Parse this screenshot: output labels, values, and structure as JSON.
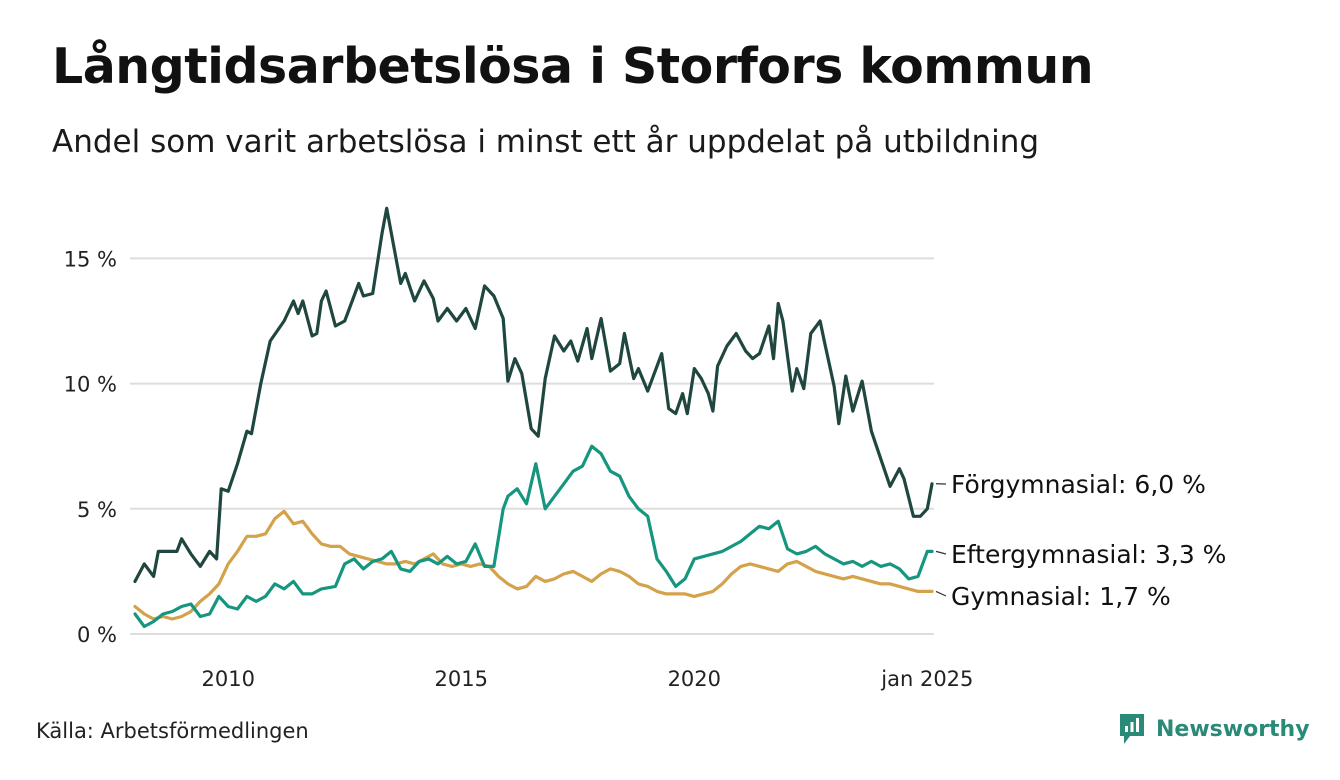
{
  "header": {
    "title": "Långtidsarbetslösa i Storfors kommun",
    "subtitle": "Andel som varit arbetslösa i minst ett år uppdelat på utbildning"
  },
  "footer": {
    "source": "Källa: Arbetsförmedlingen",
    "brand": "Newsworthy",
    "brand_icon": "newsworthy-logo-icon"
  },
  "colors": {
    "forgymnasial": "#1f4740",
    "eftergymnasial": "#17967f",
    "gymnasial": "#d4a24a",
    "grid": "#dddddd",
    "brand": "#2a8a78"
  },
  "chart_data": {
    "type": "line",
    "title": "Långtidsarbetslösa i Storfors kommun",
    "subtitle": "Andel som varit arbetslösa i minst ett år uppdelat på utbildning",
    "xlabel": "",
    "ylabel": "",
    "x_range": [
      2008,
      2025.1
    ],
    "ylim": [
      0,
      18
    ],
    "y_ticks": [
      0,
      5,
      10,
      15
    ],
    "y_tick_labels": [
      "0 %",
      "5 %",
      "10 %",
      "15 %"
    ],
    "x_ticks": [
      2010,
      2015,
      2020,
      2025
    ],
    "x_tick_labels": [
      "2010",
      "2015",
      "2020",
      "jan 2025"
    ],
    "grid": true,
    "legend": "direct labels at right end of lines",
    "series": [
      {
        "name": "Förgymnasial",
        "label": "Förgymnasial: 6,0 %",
        "color": "#1f4740",
        "points": [
          [
            2008.0,
            2.1
          ],
          [
            2008.2,
            2.8
          ],
          [
            2008.4,
            2.3
          ],
          [
            2008.5,
            3.3
          ],
          [
            2008.9,
            3.3
          ],
          [
            2009.0,
            3.8
          ],
          [
            2009.2,
            3.2
          ],
          [
            2009.4,
            2.7
          ],
          [
            2009.6,
            3.3
          ],
          [
            2009.75,
            3.0
          ],
          [
            2009.85,
            5.8
          ],
          [
            2010.0,
            5.7
          ],
          [
            2010.2,
            6.8
          ],
          [
            2010.4,
            8.1
          ],
          [
            2010.5,
            8.0
          ],
          [
            2010.7,
            10.0
          ],
          [
            2010.9,
            11.7
          ],
          [
            2011.2,
            12.5
          ],
          [
            2011.4,
            13.3
          ],
          [
            2011.5,
            12.8
          ],
          [
            2011.6,
            13.3
          ],
          [
            2011.8,
            11.9
          ],
          [
            2011.9,
            12.0
          ],
          [
            2012.0,
            13.3
          ],
          [
            2012.1,
            13.7
          ],
          [
            2012.3,
            12.3
          ],
          [
            2012.5,
            12.5
          ],
          [
            2012.6,
            13.0
          ],
          [
            2012.8,
            14.0
          ],
          [
            2012.9,
            13.5
          ],
          [
            2013.1,
            13.6
          ],
          [
            2013.3,
            16.0
          ],
          [
            2013.4,
            17.0
          ],
          [
            2013.55,
            15.5
          ],
          [
            2013.7,
            14.0
          ],
          [
            2013.8,
            14.4
          ],
          [
            2014.0,
            13.3
          ],
          [
            2014.2,
            14.1
          ],
          [
            2014.4,
            13.4
          ],
          [
            2014.5,
            12.5
          ],
          [
            2014.7,
            13.0
          ],
          [
            2014.9,
            12.5
          ],
          [
            2015.1,
            13.0
          ],
          [
            2015.3,
            12.2
          ],
          [
            2015.5,
            13.9
          ],
          [
            2015.7,
            13.5
          ],
          [
            2015.9,
            12.6
          ],
          [
            2016.0,
            10.1
          ],
          [
            2016.15,
            11.0
          ],
          [
            2016.3,
            10.4
          ],
          [
            2016.5,
            8.2
          ],
          [
            2016.65,
            7.9
          ],
          [
            2016.8,
            10.2
          ],
          [
            2017.0,
            11.9
          ],
          [
            2017.2,
            11.3
          ],
          [
            2017.35,
            11.7
          ],
          [
            2017.5,
            10.9
          ],
          [
            2017.7,
            12.2
          ],
          [
            2017.8,
            11.0
          ],
          [
            2018.0,
            12.6
          ],
          [
            2018.2,
            10.5
          ],
          [
            2018.4,
            10.8
          ],
          [
            2018.5,
            12.0
          ],
          [
            2018.7,
            10.2
          ],
          [
            2018.8,
            10.6
          ],
          [
            2019.0,
            9.7
          ],
          [
            2019.3,
            11.2
          ],
          [
            2019.45,
            9.0
          ],
          [
            2019.6,
            8.8
          ],
          [
            2019.75,
            9.6
          ],
          [
            2019.85,
            8.8
          ],
          [
            2020.0,
            10.6
          ],
          [
            2020.15,
            10.2
          ],
          [
            2020.3,
            9.6
          ],
          [
            2020.4,
            8.9
          ],
          [
            2020.5,
            10.7
          ],
          [
            2020.7,
            11.5
          ],
          [
            2020.9,
            12.0
          ],
          [
            2021.1,
            11.3
          ],
          [
            2021.25,
            11.0
          ],
          [
            2021.4,
            11.2
          ],
          [
            2021.6,
            12.3
          ],
          [
            2021.7,
            11.0
          ],
          [
            2021.8,
            13.2
          ],
          [
            2021.9,
            12.5
          ],
          [
            2022.1,
            9.7
          ],
          [
            2022.2,
            10.6
          ],
          [
            2022.35,
            9.8
          ],
          [
            2022.5,
            12.0
          ],
          [
            2022.7,
            12.5
          ],
          [
            2022.8,
            11.6
          ],
          [
            2023.0,
            9.9
          ],
          [
            2023.1,
            8.4
          ],
          [
            2023.25,
            10.3
          ],
          [
            2023.4,
            8.9
          ],
          [
            2023.6,
            10.1
          ],
          [
            2023.8,
            8.1
          ],
          [
            2024.0,
            7.0
          ],
          [
            2024.2,
            5.9
          ],
          [
            2024.4,
            6.6
          ],
          [
            2024.5,
            6.2
          ],
          [
            2024.7,
            4.7
          ],
          [
            2024.85,
            4.7
          ],
          [
            2025.0,
            5.0
          ],
          [
            2025.1,
            6.0
          ]
        ]
      },
      {
        "name": "Eftergymnasial",
        "label": "Eftergymnasial: 3,3 %",
        "color": "#17967f",
        "points": [
          [
            2008.0,
            0.8
          ],
          [
            2008.2,
            0.3
          ],
          [
            2008.4,
            0.5
          ],
          [
            2008.6,
            0.8
          ],
          [
            2008.8,
            0.9
          ],
          [
            2009.0,
            1.1
          ],
          [
            2009.2,
            1.2
          ],
          [
            2009.4,
            0.7
          ],
          [
            2009.6,
            0.8
          ],
          [
            2009.8,
            1.5
          ],
          [
            2010.0,
            1.1
          ],
          [
            2010.2,
            1.0
          ],
          [
            2010.4,
            1.5
          ],
          [
            2010.6,
            1.3
          ],
          [
            2010.8,
            1.5
          ],
          [
            2011.0,
            2.0
          ],
          [
            2011.2,
            1.8
          ],
          [
            2011.4,
            2.1
          ],
          [
            2011.6,
            1.6
          ],
          [
            2011.8,
            1.6
          ],
          [
            2012.0,
            1.8
          ],
          [
            2012.3,
            1.9
          ],
          [
            2012.5,
            2.8
          ],
          [
            2012.7,
            3.0
          ],
          [
            2012.9,
            2.6
          ],
          [
            2013.1,
            2.9
          ],
          [
            2013.3,
            3.0
          ],
          [
            2013.5,
            3.3
          ],
          [
            2013.7,
            2.6
          ],
          [
            2013.9,
            2.5
          ],
          [
            2014.1,
            2.9
          ],
          [
            2014.3,
            3.0
          ],
          [
            2014.5,
            2.8
          ],
          [
            2014.7,
            3.1
          ],
          [
            2014.9,
            2.8
          ],
          [
            2015.1,
            2.9
          ],
          [
            2015.3,
            3.6
          ],
          [
            2015.5,
            2.7
          ],
          [
            2015.7,
            2.7
          ],
          [
            2015.9,
            5.0
          ],
          [
            2016.0,
            5.5
          ],
          [
            2016.2,
            5.8
          ],
          [
            2016.4,
            5.2
          ],
          [
            2016.6,
            6.8
          ],
          [
            2016.8,
            5.0
          ],
          [
            2017.0,
            5.5
          ],
          [
            2017.2,
            6.0
          ],
          [
            2017.4,
            6.5
          ],
          [
            2017.6,
            6.7
          ],
          [
            2017.8,
            7.5
          ],
          [
            2018.0,
            7.2
          ],
          [
            2018.2,
            6.5
          ],
          [
            2018.4,
            6.3
          ],
          [
            2018.6,
            5.5
          ],
          [
            2018.8,
            5.0
          ],
          [
            2019.0,
            4.7
          ],
          [
            2019.2,
            3.0
          ],
          [
            2019.4,
            2.5
          ],
          [
            2019.6,
            1.9
          ],
          [
            2019.8,
            2.2
          ],
          [
            2020.0,
            3.0
          ],
          [
            2020.2,
            3.1
          ],
          [
            2020.4,
            3.2
          ],
          [
            2020.6,
            3.3
          ],
          [
            2020.8,
            3.5
          ],
          [
            2021.0,
            3.7
          ],
          [
            2021.2,
            4.0
          ],
          [
            2021.4,
            4.3
          ],
          [
            2021.6,
            4.2
          ],
          [
            2021.8,
            4.5
          ],
          [
            2022.0,
            3.4
          ],
          [
            2022.2,
            3.2
          ],
          [
            2022.4,
            3.3
          ],
          [
            2022.6,
            3.5
          ],
          [
            2022.8,
            3.2
          ],
          [
            2023.0,
            3.0
          ],
          [
            2023.2,
            2.8
          ],
          [
            2023.4,
            2.9
          ],
          [
            2023.6,
            2.7
          ],
          [
            2023.8,
            2.9
          ],
          [
            2024.0,
            2.7
          ],
          [
            2024.2,
            2.8
          ],
          [
            2024.4,
            2.6
          ],
          [
            2024.6,
            2.2
          ],
          [
            2024.8,
            2.3
          ],
          [
            2025.0,
            3.3
          ],
          [
            2025.1,
            3.3
          ]
        ]
      },
      {
        "name": "Gymnasial",
        "label": "Gymnasial: 1,7 %",
        "color": "#d4a24a",
        "points": [
          [
            2008.0,
            1.1
          ],
          [
            2008.2,
            0.8
          ],
          [
            2008.4,
            0.6
          ],
          [
            2008.6,
            0.7
          ],
          [
            2008.8,
            0.6
          ],
          [
            2009.0,
            0.7
          ],
          [
            2009.2,
            0.9
          ],
          [
            2009.4,
            1.3
          ],
          [
            2009.6,
            1.6
          ],
          [
            2009.8,
            2.0
          ],
          [
            2010.0,
            2.8
          ],
          [
            2010.2,
            3.3
          ],
          [
            2010.4,
            3.9
          ],
          [
            2010.6,
            3.9
          ],
          [
            2010.8,
            4.0
          ],
          [
            2011.0,
            4.6
          ],
          [
            2011.2,
            4.9
          ],
          [
            2011.4,
            4.4
          ],
          [
            2011.6,
            4.5
          ],
          [
            2011.8,
            4.0
          ],
          [
            2012.0,
            3.6
          ],
          [
            2012.2,
            3.5
          ],
          [
            2012.4,
            3.5
          ],
          [
            2012.6,
            3.2
          ],
          [
            2012.8,
            3.1
          ],
          [
            2013.0,
            3.0
          ],
          [
            2013.2,
            2.9
          ],
          [
            2013.4,
            2.8
          ],
          [
            2013.6,
            2.8
          ],
          [
            2013.8,
            2.9
          ],
          [
            2014.0,
            2.8
          ],
          [
            2014.2,
            3.0
          ],
          [
            2014.4,
            3.2
          ],
          [
            2014.6,
            2.8
          ],
          [
            2014.8,
            2.7
          ],
          [
            2015.0,
            2.8
          ],
          [
            2015.2,
            2.7
          ],
          [
            2015.4,
            2.8
          ],
          [
            2015.6,
            2.7
          ],
          [
            2015.8,
            2.3
          ],
          [
            2016.0,
            2.0
          ],
          [
            2016.2,
            1.8
          ],
          [
            2016.4,
            1.9
          ],
          [
            2016.6,
            2.3
          ],
          [
            2016.8,
            2.1
          ],
          [
            2017.0,
            2.2
          ],
          [
            2017.2,
            2.4
          ],
          [
            2017.4,
            2.5
          ],
          [
            2017.6,
            2.3
          ],
          [
            2017.8,
            2.1
          ],
          [
            2018.0,
            2.4
          ],
          [
            2018.2,
            2.6
          ],
          [
            2018.4,
            2.5
          ],
          [
            2018.6,
            2.3
          ],
          [
            2018.8,
            2.0
          ],
          [
            2019.0,
            1.9
          ],
          [
            2019.2,
            1.7
          ],
          [
            2019.4,
            1.6
          ],
          [
            2019.6,
            1.6
          ],
          [
            2019.8,
            1.6
          ],
          [
            2020.0,
            1.5
          ],
          [
            2020.2,
            1.6
          ],
          [
            2020.4,
            1.7
          ],
          [
            2020.6,
            2.0
          ],
          [
            2020.8,
            2.4
          ],
          [
            2021.0,
            2.7
          ],
          [
            2021.2,
            2.8
          ],
          [
            2021.4,
            2.7
          ],
          [
            2021.6,
            2.6
          ],
          [
            2021.8,
            2.5
          ],
          [
            2022.0,
            2.8
          ],
          [
            2022.2,
            2.9
          ],
          [
            2022.4,
            2.7
          ],
          [
            2022.6,
            2.5
          ],
          [
            2022.8,
            2.4
          ],
          [
            2023.0,
            2.3
          ],
          [
            2023.2,
            2.2
          ],
          [
            2023.4,
            2.3
          ],
          [
            2023.6,
            2.2
          ],
          [
            2023.8,
            2.1
          ],
          [
            2024.0,
            2.0
          ],
          [
            2024.2,
            2.0
          ],
          [
            2024.4,
            1.9
          ],
          [
            2024.6,
            1.8
          ],
          [
            2024.8,
            1.7
          ],
          [
            2025.0,
            1.7
          ],
          [
            2025.1,
            1.7
          ]
        ]
      }
    ]
  }
}
